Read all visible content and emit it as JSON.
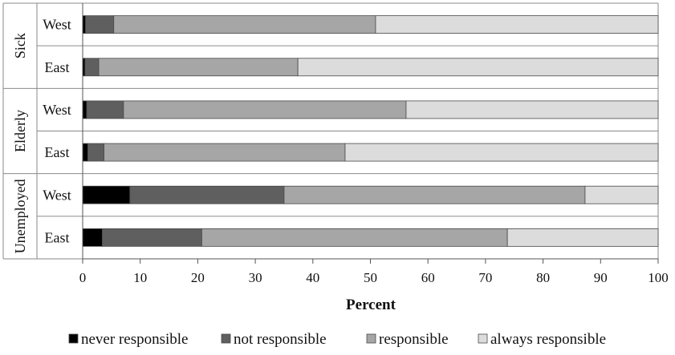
{
  "chart_data": {
    "type": "bar",
    "orientation": "horizontal",
    "stacked": true,
    "xlabel": "Percent",
    "xlim": [
      0,
      100
    ],
    "xticks": [
      0,
      10,
      20,
      30,
      40,
      50,
      60,
      70,
      80,
      90,
      100
    ],
    "legend_position": "bottom",
    "groups": [
      "Sick",
      "Elderly",
      "Unemployed"
    ],
    "rows": [
      {
        "group": "Sick",
        "label": "West",
        "values": [
          0.5,
          4.9,
          45.5,
          49.1
        ]
      },
      {
        "group": "Sick",
        "label": "East",
        "values": [
          0.4,
          2.4,
          34.6,
          62.6
        ]
      },
      {
        "group": "Elderly",
        "label": "West",
        "values": [
          0.7,
          6.4,
          49.1,
          43.8
        ]
      },
      {
        "group": "Elderly",
        "label": "East",
        "values": [
          0.9,
          2.8,
          41.9,
          54.4
        ]
      },
      {
        "group": "Unemployed",
        "label": "West",
        "values": [
          8.2,
          26.8,
          52.3,
          12.7
        ]
      },
      {
        "group": "Unemployed",
        "label": "East",
        "values": [
          3.4,
          17.3,
          53.1,
          26.2
        ]
      }
    ],
    "series": [
      {
        "name": "never responsible",
        "color": "#000000"
      },
      {
        "name": "not responsible",
        "color": "#5f5f5f"
      },
      {
        "name": "responsible",
        "color": "#a6a6a6"
      },
      {
        "name": "always responsible",
        "color": "#dcdcdc"
      }
    ]
  }
}
